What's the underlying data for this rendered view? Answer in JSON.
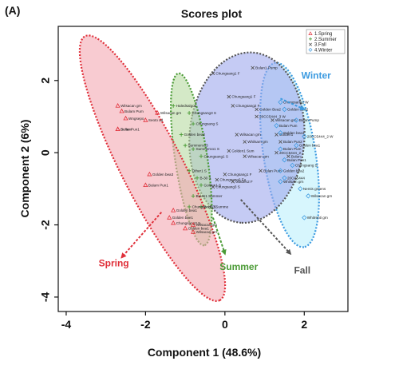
{
  "panel_label": "(A)",
  "chart_data": {
    "type": "scatter",
    "title": "Scores plot",
    "xlabel": "Component 1 (48.6%)",
    "ylabel": "Component 2 (6%)",
    "xlim": [
      -4.2,
      3.1
    ],
    "ylim": [
      -4.4,
      3.5
    ],
    "xticks": [
      -4,
      -2,
      0,
      2
    ],
    "yticks": [
      -4,
      -2,
      0,
      2
    ],
    "xtick_labels": [
      "-4",
      "-2",
      "0",
      "2"
    ],
    "ytick_labels": [
      "-4",
      "-2",
      "0",
      "2"
    ],
    "grid": false,
    "legend_position": "top-right",
    "series": [
      {
        "name": "1.Spring",
        "color": "#e0303a",
        "marker": "triangle",
        "fill": "#f4a8b2",
        "ellipse_label": "Spring",
        "points": [
          {
            "x": -2.7,
            "y": 1.3,
            "label": "Wilsacan grn"
          },
          {
            "x": -2.6,
            "y": 1.15,
            "label": "Bulam Pum"
          },
          {
            "x": -2.5,
            "y": 0.95,
            "label": "Wngsepo"
          },
          {
            "x": -2.7,
            "y": 0.65,
            "label": "Sollam"
          },
          {
            "x": -2.7,
            "y": 0.65,
            "label": "Bulan Pun1"
          },
          {
            "x": -2.0,
            "y": 0.9,
            "label": "Seoto ad"
          },
          {
            "x": -1.7,
            "y": 1.1,
            "label": "Wilsacan grn"
          },
          {
            "x": -1.9,
            "y": -0.6,
            "label": "Golden bea3"
          },
          {
            "x": -2.0,
            "y": -0.9,
            "label": "Bulam Pun1"
          },
          {
            "x": -1.3,
            "y": -1.6,
            "label": "Golden bea1"
          },
          {
            "x": -1.4,
            "y": -1.8,
            "label": "Golden bee1"
          },
          {
            "x": -1.3,
            "y": -1.95,
            "label": "Chungsang3 S"
          },
          {
            "x": -1.0,
            "y": -2.1,
            "label": "Golden bea1"
          },
          {
            "x": -0.8,
            "y": -2.0,
            "label": "Wilsacan grn"
          },
          {
            "x": -0.8,
            "y": -2.2,
            "label": "Wilsacan grn"
          }
        ]
      },
      {
        "name": "2.Summer",
        "color": "#4a9a35",
        "marker": "plus",
        "fill": "#b7dba2",
        "ellipse_label": "Summer",
        "points": [
          {
            "x": -1.3,
            "y": 1.3,
            "label": "Haledsalgo1"
          },
          {
            "x": -0.9,
            "y": 1.1,
            "label": "Chungsang3 S"
          },
          {
            "x": -0.8,
            "y": 0.8,
            "label": "Chungsang S"
          },
          {
            "x": -1.1,
            "y": 0.5,
            "label": "Golden bea2"
          },
          {
            "x": -1.0,
            "y": 0.2,
            "label": "Summeroo3"
          },
          {
            "x": -0.8,
            "y": 0.1,
            "label": "Summeroo1 S"
          },
          {
            "x": -0.6,
            "y": -0.1,
            "label": "Chungsang1 S"
          },
          {
            "x": -0.9,
            "y": -0.5,
            "label": "Other1 S"
          },
          {
            "x": -0.7,
            "y": -0.7,
            "label": "B-30 3"
          },
          {
            "x": -0.6,
            "y": -0.9,
            "label": "Golden1 S"
          },
          {
            "x": -0.8,
            "y": -1.2,
            "label": "Bulan1 Summer"
          },
          {
            "x": -0.6,
            "y": -1.5,
            "label": "B-10 3 Summe"
          },
          {
            "x": -0.9,
            "y": -1.5,
            "label": "Chungsang3 S"
          }
        ]
      },
      {
        "name": "3.Fall",
        "color": "#555555",
        "marker": "x",
        "fill": "#9fa9ec",
        "ellipse_label": "Fall",
        "points": [
          {
            "x": -0.3,
            "y": 2.2,
            "label": "Chungsang1 F"
          },
          {
            "x": 0.7,
            "y": 2.35,
            "label": "Bulan1 Pump"
          },
          {
            "x": 0.1,
            "y": 1.55,
            "label": "Chungsang1 F"
          },
          {
            "x": 0.2,
            "y": 1.3,
            "label": "Chungsang2 F"
          },
          {
            "x": 0.8,
            "y": 1.2,
            "label": "Golden Bea2"
          },
          {
            "x": 0.8,
            "y": 1.0,
            "label": "20CC5444_3 W"
          },
          {
            "x": 0.3,
            "y": 0.5,
            "label": "Wilsacan grn"
          },
          {
            "x": 0.5,
            "y": 0.3,
            "label": "Whilsam grn"
          },
          {
            "x": 0.1,
            "y": 0.05,
            "label": "Golden1 Sum"
          },
          {
            "x": 0.5,
            "y": -0.1,
            "label": "Wilsacan grn"
          },
          {
            "x": 0.9,
            "y": -0.5,
            "label": "Bulan Pum"
          },
          {
            "x": 0.0,
            "y": -0.6,
            "label": "Chungsang1 F"
          },
          {
            "x": -0.2,
            "y": -0.75,
            "label": "Chungsang2 Fa"
          },
          {
            "x": 0.2,
            "y": -0.8,
            "label": "Golden2 F"
          },
          {
            "x": -0.3,
            "y": -0.95,
            "label": "Chungsang3 S"
          },
          {
            "x": 1.2,
            "y": 0.9,
            "label": "Wilsacan grn"
          },
          {
            "x": 1.3,
            "y": 0.5,
            "label": "Golden1"
          },
          {
            "x": 1.4,
            "y": 0.3,
            "label": "Bulan Pun2"
          },
          {
            "x": 1.3,
            "y": 0.0,
            "label": "20CC5444_2"
          },
          {
            "x": 1.6,
            "y": -0.1,
            "label": "Bulan"
          }
        ]
      },
      {
        "name": "4.Winter",
        "color": "#3d9be0",
        "marker": "diamond",
        "fill": "#bdf0fb",
        "ellipse_label": "Winter",
        "points": [
          {
            "x": 1.4,
            "y": 1.4,
            "label": "Chungsang2 W"
          },
          {
            "x": 1.5,
            "y": 1.2,
            "label": "Golden bea2"
          },
          {
            "x": 1.8,
            "y": 0.9,
            "label": "Bulan Pump"
          },
          {
            "x": 1.3,
            "y": 0.75,
            "label": "Bulan Pum"
          },
          {
            "x": 1.4,
            "y": 0.55,
            "label": "Golden bea1"
          },
          {
            "x": 2.0,
            "y": 0.45,
            "label": "20CC5444_2 W"
          },
          {
            "x": 1.4,
            "y": 0.1,
            "label": "Bulan Pum"
          },
          {
            "x": 1.8,
            "y": 0.2,
            "label": "Golden bea1"
          },
          {
            "x": 1.5,
            "y": -0.2,
            "label": "Bulan Pun1"
          },
          {
            "x": 1.7,
            "y": -0.35,
            "label": "Chungsang S"
          },
          {
            "x": 1.4,
            "y": -0.5,
            "label": "Golden bea2"
          },
          {
            "x": 1.5,
            "y": -0.7,
            "label": "20CC5444"
          },
          {
            "x": 1.4,
            "y": -0.8,
            "label": "Whilsam grn"
          },
          {
            "x": 1.9,
            "y": -1.0,
            "label": "Nemis greens"
          },
          {
            "x": 2.1,
            "y": -1.2,
            "label": "Wilsacan grn"
          },
          {
            "x": 2.0,
            "y": -1.8,
            "label": "Whitrenti grn"
          }
        ]
      }
    ]
  }
}
